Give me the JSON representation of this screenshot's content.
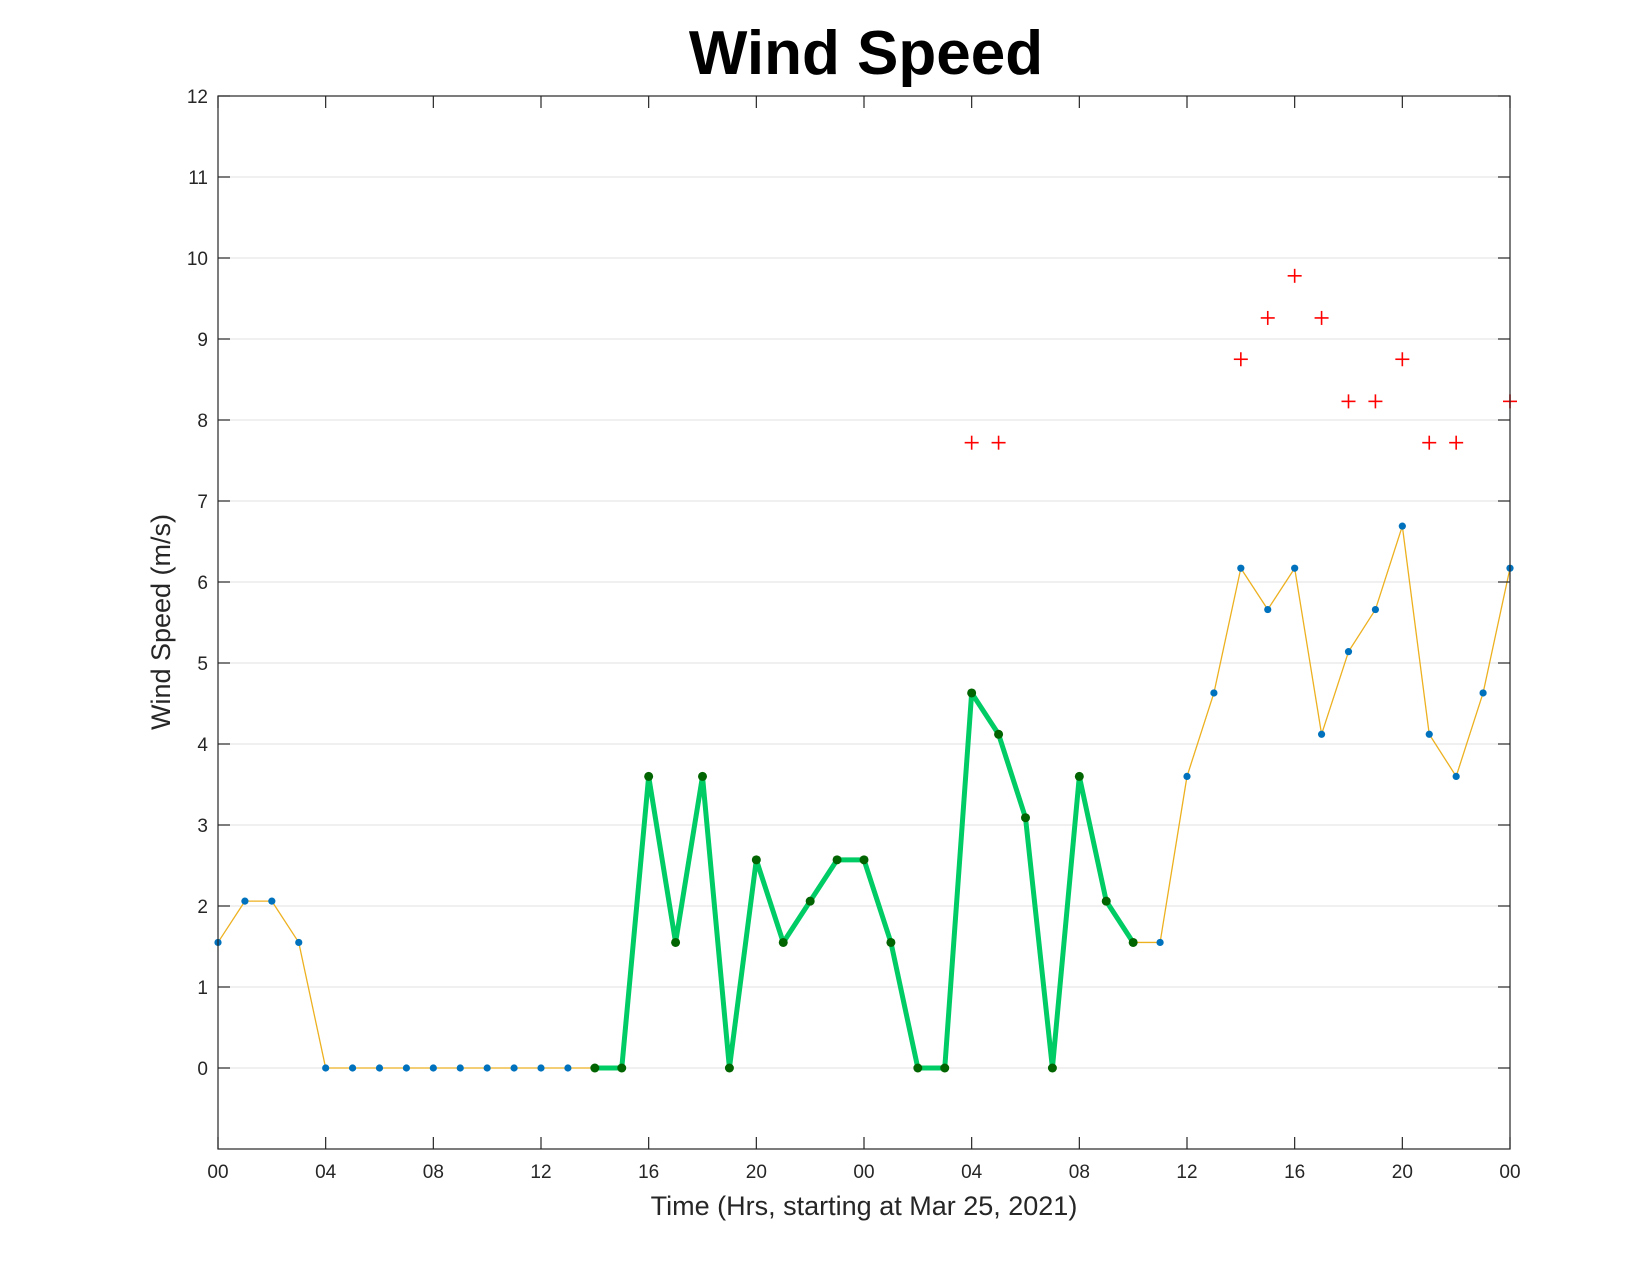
{
  "chart_data": {
    "type": "line",
    "title": "Wind Speed",
    "xlabel": "Time (Hrs, starting at Mar 25, 2021)",
    "ylabel": "Wind Speed (m/s)",
    "xlim": [
      "2021-03-25 00:00",
      "2021-03-27 00:00"
    ],
    "ylim": [
      -1,
      12
    ],
    "yticks": [
      0,
      1,
      2,
      3,
      4,
      5,
      6,
      7,
      8,
      9,
      10,
      11,
      12
    ],
    "xticks": [
      {
        "time": "2021-03-25 00:00",
        "label": "00"
      },
      {
        "time": "2021-03-25 04:00",
        "label": "04"
      },
      {
        "time": "2021-03-25 08:00",
        "label": "08"
      },
      {
        "time": "2021-03-25 12:00",
        "label": "12"
      },
      {
        "time": "2021-03-25 16:00",
        "label": "16"
      },
      {
        "time": "2021-03-25 20:00",
        "label": "20"
      },
      {
        "time": "2021-03-26 00:00",
        "label": "00"
      },
      {
        "time": "2021-03-26 04:00",
        "label": "04"
      },
      {
        "time": "2021-03-26 08:00",
        "label": "08"
      },
      {
        "time": "2021-03-26 12:00",
        "label": "12"
      },
      {
        "time": "2021-03-26 16:00",
        "label": "16"
      },
      {
        "time": "2021-03-26 20:00",
        "label": "20"
      },
      {
        "time": "2021-03-27 00:00",
        "label": "00"
      }
    ],
    "grid": "horizontal",
    "series": [
      {
        "color": "#edb120",
        "marker_color": "#0072bd",
        "style": "thin line with dot markers",
        "x": [
          "2021-03-25 00:00",
          "2021-03-25 01:00",
          "2021-03-25 02:00",
          "2021-03-25 03:00",
          "2021-03-25 04:00",
          "2021-03-25 05:00",
          "2021-03-25 06:00",
          "2021-03-25 07:00",
          "2021-03-25 08:00",
          "2021-03-25 09:00",
          "2021-03-25 10:00",
          "2021-03-25 11:00",
          "2021-03-25 12:00",
          "2021-03-25 13:00",
          "2021-03-25 14:00",
          "2021-03-25 15:00",
          "2021-03-25 16:00",
          "2021-03-25 17:00",
          "2021-03-25 18:00",
          "2021-03-25 19:00",
          "2021-03-25 20:00",
          "2021-03-25 21:00",
          "2021-03-25 22:00",
          "2021-03-25 23:00",
          "2021-03-26 00:00",
          "2021-03-26 01:00",
          "2021-03-26 02:00",
          "2021-03-26 03:00",
          "2021-03-26 04:00",
          "2021-03-26 05:00",
          "2021-03-26 06:00",
          "2021-03-26 07:00",
          "2021-03-26 08:00",
          "2021-03-26 09:00",
          "2021-03-26 10:00",
          "2021-03-26 11:00",
          "2021-03-26 12:00",
          "2021-03-26 13:00",
          "2021-03-26 14:00",
          "2021-03-26 15:00",
          "2021-03-26 16:00",
          "2021-03-26 17:00",
          "2021-03-26 18:00",
          "2021-03-26 19:00",
          "2021-03-26 20:00",
          "2021-03-26 21:00",
          "2021-03-26 22:00",
          "2021-03-26 23:00",
          "2021-03-27 00:00"
        ],
        "y": [
          1.55,
          2.06,
          2.06,
          1.55,
          0,
          0,
          0,
          0,
          0,
          0,
          0,
          0,
          0,
          0,
          0,
          0,
          3.6,
          1.55,
          3.6,
          0,
          2.57,
          1.55,
          2.06,
          2.57,
          2.57,
          1.55,
          0,
          0,
          4.63,
          4.12,
          3.09,
          0,
          3.6,
          2.06,
          1.55,
          1.55,
          3.6,
          4.63,
          6.17,
          5.66,
          6.17,
          4.12,
          5.14,
          5.66,
          6.69,
          4.12,
          3.6,
          4.63,
          6.17
        ]
      },
      {
        "color": "#00cc66",
        "marker_color": "#006400",
        "style": "thick line with dot markers",
        "x": [
          "2021-03-25 14:00",
          "2021-03-25 15:00",
          "2021-03-25 16:00",
          "2021-03-25 17:00",
          "2021-03-25 18:00",
          "2021-03-25 19:00",
          "2021-03-25 20:00",
          "2021-03-25 21:00",
          "2021-03-25 22:00",
          "2021-03-25 23:00",
          "2021-03-26 00:00",
          "2021-03-26 01:00",
          "2021-03-26 02:00",
          "2021-03-26 03:00",
          "2021-03-26 04:00",
          "2021-03-26 05:00",
          "2021-03-26 06:00",
          "2021-03-26 07:00",
          "2021-03-26 08:00",
          "2021-03-26 09:00",
          "2021-03-26 10:00"
        ],
        "y": [
          0,
          0,
          3.6,
          1.55,
          3.6,
          0,
          2.57,
          1.55,
          2.06,
          2.57,
          2.57,
          1.55,
          0,
          0,
          4.63,
          4.12,
          3.09,
          0,
          3.6,
          2.06,
          1.55
        ]
      },
      {
        "color": "#ff0000",
        "style": "plus markers",
        "x": [
          "2021-03-26 04:00",
          "2021-03-26 05:00",
          "2021-03-26 14:00",
          "2021-03-26 15:00",
          "2021-03-26 16:00",
          "2021-03-26 17:00",
          "2021-03-26 18:00",
          "2021-03-26 19:00",
          "2021-03-26 20:00",
          "2021-03-26 21:00",
          "2021-03-26 22:00",
          "2021-03-27 00:00"
        ],
        "y": [
          7.72,
          7.72,
          8.75,
          9.26,
          9.78,
          9.26,
          8.23,
          8.23,
          8.75,
          7.72,
          7.72,
          8.23
        ]
      }
    ]
  }
}
